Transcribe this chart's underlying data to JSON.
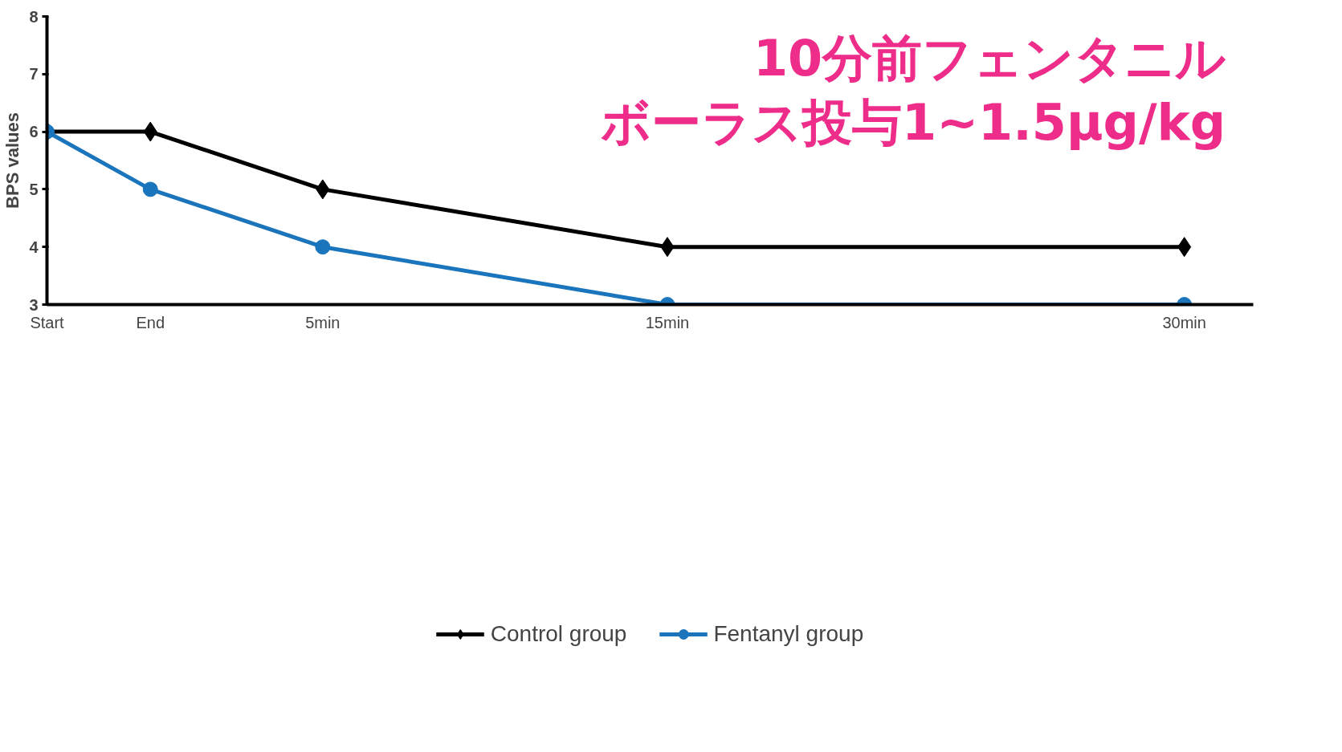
{
  "chart_data": {
    "type": "line",
    "title": "10分前フェンタニル",
    "subtitle": "ボーラス投与1~1.5μg/kg",
    "ylabel": "BPS values",
    "x": [
      -3,
      0,
      5,
      15,
      30
    ],
    "xlim": [
      -3,
      32
    ],
    "xticks": [
      {
        "value": -3,
        "label": "Start"
      },
      {
        "value": 0,
        "label": "End"
      },
      {
        "value": 5,
        "label": "5min"
      },
      {
        "value": 15,
        "label": "15min"
      },
      {
        "value": 30,
        "label": "30min"
      }
    ],
    "ylim": [
      3,
      8
    ],
    "yticks": [
      3,
      4,
      5,
      6,
      7,
      8
    ],
    "series": [
      {
        "name": "Control group",
        "color": "#000000",
        "marker": "diamond",
        "values": [
          6,
          6,
          5,
          4,
          4
        ]
      },
      {
        "name": "Fentanyl group",
        "color": "#1a75bc",
        "marker": "circle",
        "values": [
          6,
          5,
          4,
          3,
          3
        ]
      }
    ],
    "grid": false,
    "legend": "bottom",
    "line_style": "solid"
  }
}
